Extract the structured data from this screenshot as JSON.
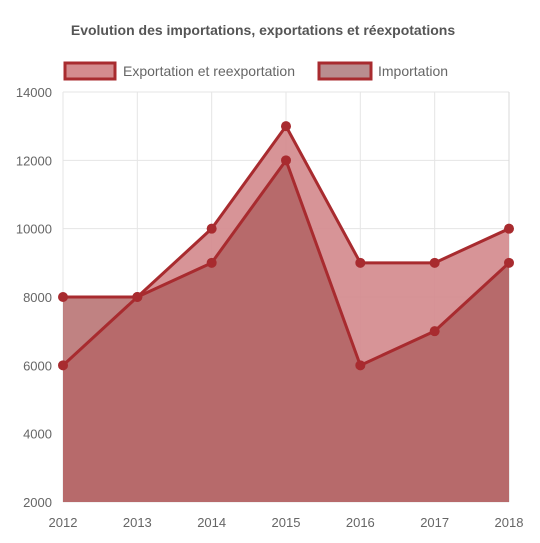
{
  "colors": {
    "series_line": "#a82b2f",
    "export_fill": "#d48b8e",
    "import_fill": "#ae5f5f",
    "import_swatch_fill": "#b98d8f",
    "grid": "#e5e5e5",
    "text": "#666666",
    "title": "#555555"
  },
  "chart_data": {
    "type": "area",
    "title": "Evolution des importations, exportations et réexpotations",
    "xlabel": "",
    "ylabel": "",
    "categories": [
      "2012",
      "2013",
      "2014",
      "2015",
      "2016",
      "2017",
      "2018"
    ],
    "ylim": [
      2000,
      14000
    ],
    "yticks": [
      "14000",
      "12000",
      "10000",
      "8000",
      "6000",
      "4000",
      "2000"
    ],
    "grid": true,
    "legend_position": "top",
    "series": [
      {
        "name": "Exportation et reexportation",
        "values": [
          6000,
          8000,
          10000,
          13000,
          9000,
          9000,
          10000
        ]
      },
      {
        "name": "Importation",
        "values": [
          8000,
          8000,
          9000,
          12000,
          6000,
          7000,
          9000
        ]
      }
    ]
  }
}
